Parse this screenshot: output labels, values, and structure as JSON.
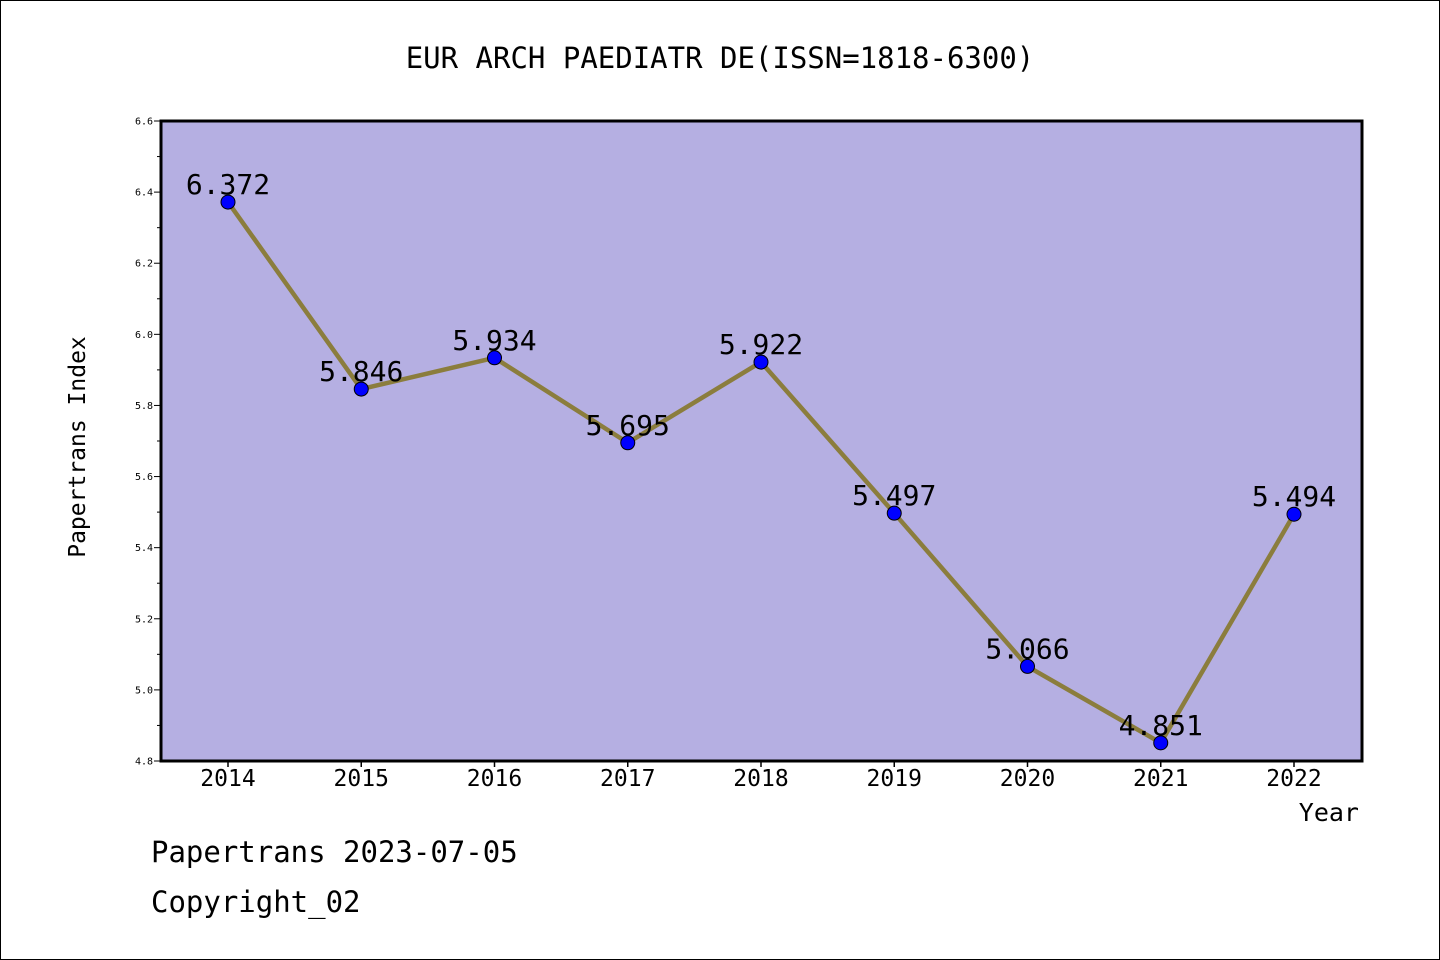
{
  "chart_data": {
    "type": "line",
    "title": "EUR ARCH PAEDIATR DE(ISSN=1818-6300)",
    "xlabel": "Year",
    "ylabel": "Papertrans Index",
    "categories": [
      "2014",
      "2015",
      "2016",
      "2017",
      "2018",
      "2019",
      "2020",
      "2021",
      "2022"
    ],
    "values": [
      6.372,
      5.846,
      5.934,
      5.695,
      5.922,
      5.497,
      5.066,
      4.851,
      5.494
    ],
    "data_labels": [
      "6.372",
      "5.846",
      "5.934",
      "5.695",
      "5.922",
      "5.497",
      "5.066",
      "4.851",
      "5.494"
    ],
    "ylim": [
      4.8,
      6.6
    ],
    "y_ticks": [
      "4.8",
      "5.0",
      "5.2",
      "5.4",
      "5.6",
      "5.8",
      "6.0",
      "6.2",
      "6.4",
      "6.6"
    ],
    "grid": false,
    "legend": "none",
    "colors": {
      "plot_background": "#b5afe2",
      "line": "#8b7d3d",
      "marker": "#0000ff"
    }
  },
  "footer": {
    "line1": "Papertrans 2023-07-05",
    "line2": "Copyright_02"
  }
}
